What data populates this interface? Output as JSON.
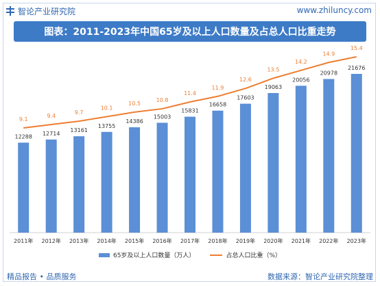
{
  "header": {
    "brand": "智论产业研究院",
    "site": "www.zhiluncy.com",
    "title": "图表：2011-2023年中国65岁及以上人口数量及占总人口比重走势"
  },
  "footer": {
    "left": "精品报告 • 品质服务",
    "right": "数据来源：智论产业研究院整理"
  },
  "colors": {
    "bar": "#5b8fd6",
    "line": "#ed7d31",
    "title_bg": "#3d7bc7",
    "brand": "#2f67b2"
  },
  "chart_data": {
    "type": "bar",
    "categories": [
      "2011年",
      "2012年",
      "2013年",
      "2014年",
      "2015年",
      "2016年",
      "2017年",
      "2018年",
      "2019年",
      "2020年",
      "2021年",
      "2022年",
      "2023年"
    ],
    "series": [
      {
        "name": "65岁及以上人口数量（万人）",
        "type": "bar",
        "values": [
          12288,
          12714,
          13161,
          13755,
          14386,
          15003,
          15831,
          16658,
          17603,
          19063,
          20056,
          20978,
          21676
        ]
      },
      {
        "name": "占总人口比重（%）",
        "type": "line",
        "values": [
          9.1,
          9.4,
          9.7,
          10.1,
          10.5,
          10.8,
          11.4,
          11.9,
          12.6,
          13.5,
          14.2,
          14.9,
          15.4
        ]
      }
    ],
    "legend_position": "bottom",
    "grid": false
  }
}
